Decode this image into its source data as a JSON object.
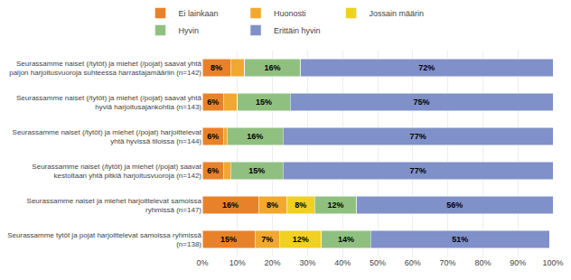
{
  "chart_data": {
    "type": "bar",
    "orientation": "horizontal",
    "stacked": true,
    "data_labels": true,
    "grid": true,
    "legend": "top",
    "categories": [
      "Seurassamme naiset (/tytöt) ja miehet (/pojat) saavat yhtä\npaljon harjoitusvuoroja suhteessa harrastajamääriin (n=142)",
      "Seurassamme naiset (/tytöt) ja miehet (/pojat) saavat yhtä\nhyviä harjoitusajankohtia (n=143)",
      "Seurassamme naiset (/tytöt) ja miehet (/pojat) harjoittelevat\nyhtä hyvissä tiloissa (n=144)",
      "Seurassamme naiset (/tytöt) ja miehet (/pojat) saavat\nkestoltaan yhtä pitkiä harjoitusvuoroja (n=142)",
      "Seurassamme naiset ja miehet harjoittelevat samoissa\nryhmissä (n=147)",
      "Seurassamme tytöt ja pojat harjoittelevat samoissa ryhmissä\n(n=138)"
    ],
    "series": [
      {
        "name": "Ei lainkaan",
        "color": "#E8822A",
        "values": [
          8,
          6,
          6,
          6,
          16,
          15
        ],
        "value_labels": [
          "8%",
          "6%",
          "6%",
          "6%",
          "16%",
          "15%"
        ]
      },
      {
        "name": "Huonosti",
        "color": "#F0A830",
        "values": [
          4,
          4,
          1,
          2,
          8,
          7
        ],
        "value_labels": [
          null,
          null,
          null,
          null,
          "8%",
          "7%"
        ]
      },
      {
        "name": "Jossain määrin",
        "color": "#F0D020",
        "values": [
          0,
          0,
          0,
          0,
          8,
          12
        ],
        "value_labels": [
          null,
          null,
          null,
          null,
          "8%",
          "12%"
        ]
      },
      {
        "name": "Hyvin",
        "color": "#90C080",
        "values": [
          16,
          15,
          16,
          15,
          12,
          14
        ],
        "value_labels": [
          "16%",
          "15%",
          "16%",
          "15%",
          "12%",
          "14%"
        ]
      },
      {
        "name": "Erittäin hyvin",
        "color": "#8090C8",
        "values": [
          72,
          75,
          77,
          77,
          56,
          51
        ],
        "value_labels": [
          "72%",
          "75%",
          "77%",
          "77%",
          "56%",
          "51%"
        ]
      }
    ],
    "xlim": [
      0,
      100
    ],
    "xticks": [
      {
        "value": 0,
        "label": "0%"
      },
      {
        "value": 10,
        "label": "10%"
      },
      {
        "value": 20,
        "label": "20%"
      },
      {
        "value": 30,
        "label": "30%"
      },
      {
        "value": 40,
        "label": "40%"
      },
      {
        "value": 50,
        "label": "50%"
      },
      {
        "value": 60,
        "label": "60%"
      },
      {
        "value": 70,
        "label": "70%"
      },
      {
        "value": 80,
        "label": "80%"
      },
      {
        "value": 90,
        "label": "90%"
      },
      {
        "value": 100,
        "label": "100%"
      }
    ]
  }
}
